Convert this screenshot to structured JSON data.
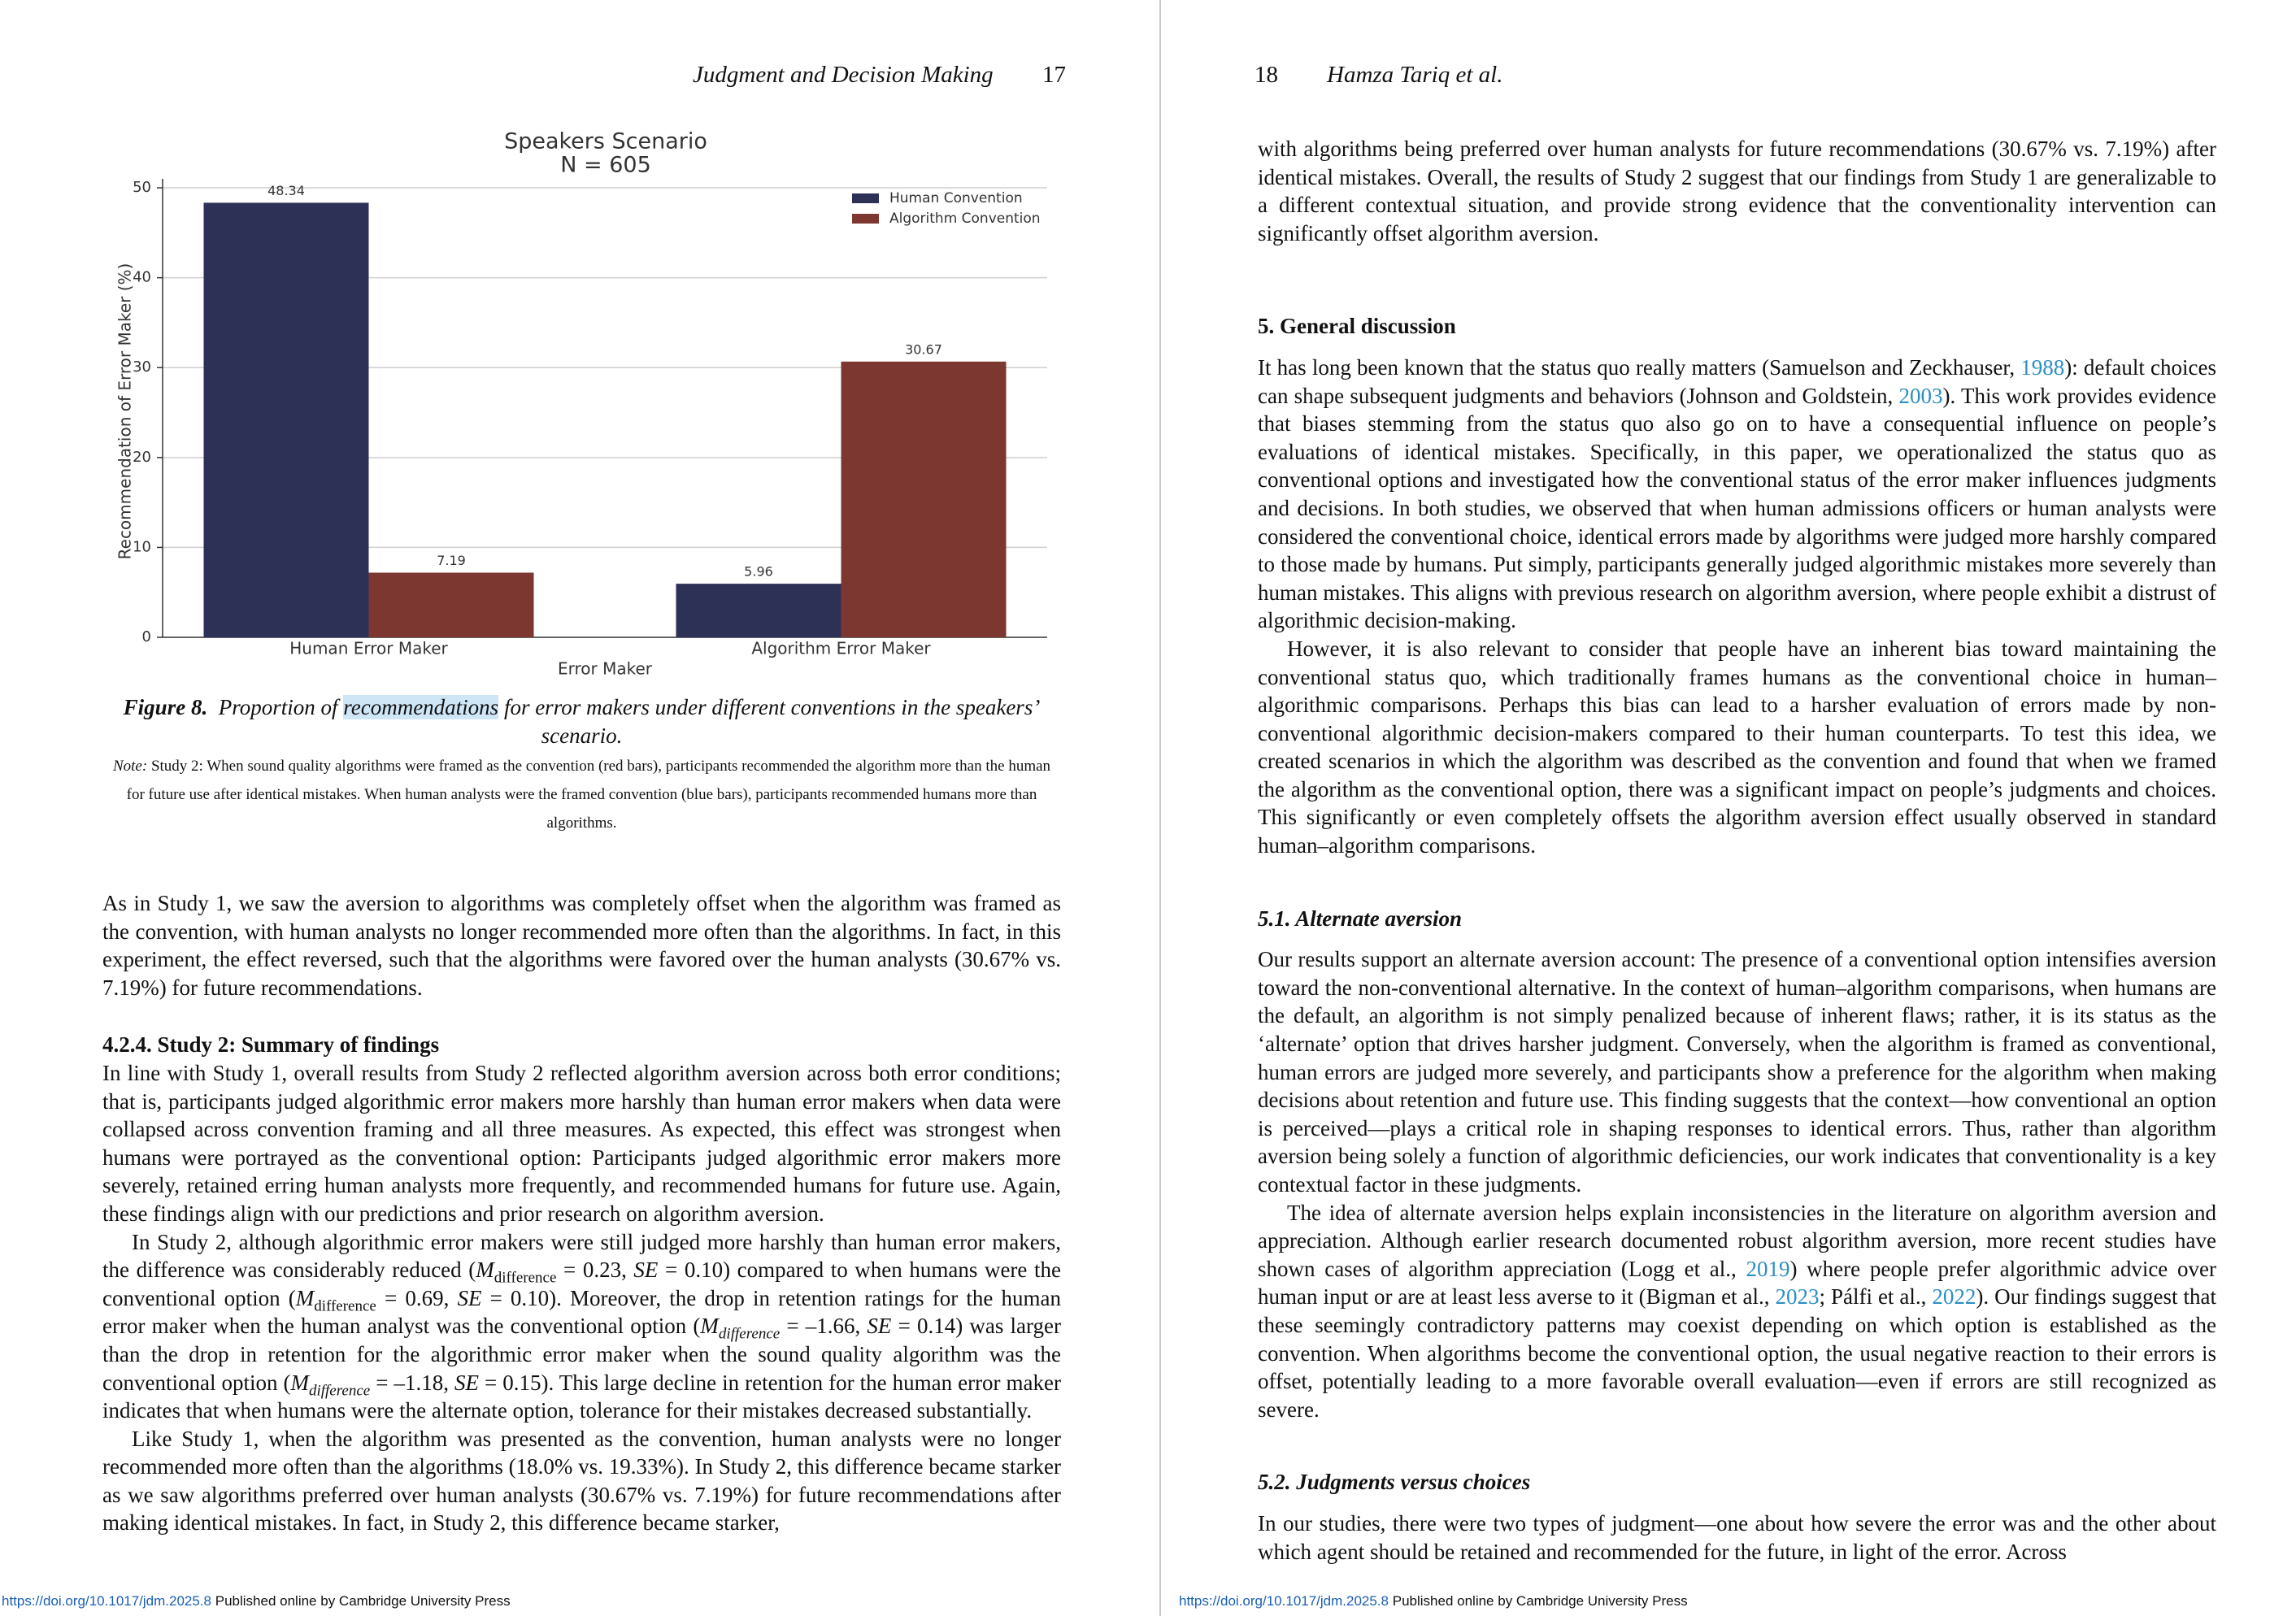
{
  "left_page": {
    "header": {
      "journal": "Judgment and Decision Making",
      "page": "17"
    },
    "figure": {
      "label": "Figure 8.",
      "caption": [
        "Proportion of ",
        "recommendations",
        " for error makers under different conventions in the speakers’ scenario."
      ],
      "note_label": "Note:",
      "note": "Study 2: When sound quality algorithms were framed as the convention (red bars), participants recommended the algorithm more than the human for future use after identical mistakes. When human analysts were the framed convention (blue bars), participants recommended humans more than algorithms."
    },
    "body": {
      "p1": "As in Study 1, we saw the aversion to algorithms was completely offset when the algorithm was framed as the convention, with human analysts no longer recommended more often than the algorithms. In fact, in this experiment, the effect reversed, such that the algorithms were favored over the human analysts (30.67% vs. 7.19%) for future recommendations.",
      "heading": "4.2.4. Study 2: Summary of findings",
      "p2": "In line with Study 1, overall results from Study 2 reflected algorithm aversion across both error conditions; that is, participants judged algorithmic error makers more harshly than human error makers when data were collapsed across convention framing and all three measures. As expected, this effect was strongest when humans were portrayed as the conventional option: Participants judged algorithmic error makers more severely, retained erring human analysts more frequently, and recommended humans for future use. Again, these findings align with our predictions and prior research on algorithm aversion.",
      "p3": [
        "In Study 2, although algorithmic error makers were still judged more harshly than human error makers, the difference was considerably reduced (",
        "M",
        "difference",
        " = 0.23, ",
        "SE",
        " = 0.10) compared to when humans were the conventional option (",
        "M",
        "difference",
        " = 0.69, ",
        "SE",
        " = 0.10). Moreover, the drop in retention ratings for the human error maker when the human analyst was the conventional option (",
        "M",
        "difference",
        " = –1.66, ",
        "SE",
        " = 0.14) was larger than the drop in retention for the algorithmic error maker when the sound quality algorithm was the conventional option (",
        "M",
        "difference",
        " = –1.18, ",
        "SE",
        " = 0.15). This large decline in retention for the human error maker indicates that when humans were the alternate option, tolerance for their mistakes decreased substantially."
      ],
      "p4": "Like Study 1, when the algorithm was presented as the convention, human analysts were no longer recommended more often than the algorithms (18.0% vs. 19.33%). In Study 2, this difference became starker as we saw algorithms preferred over human analysts (30.67% vs. 7.19%) for future recommendations after making identical mistakes. In fact, in Study 2, this difference became starker,"
    },
    "footer": {
      "doi": "https://doi.org/10.1017/jdm.2025.8",
      "publisher": "Published online by Cambridge University Press"
    }
  },
  "right_page": {
    "header": {
      "page": "18",
      "authors": "Hamza Tariq et al."
    },
    "body": {
      "p0": "with algorithms being preferred over human analysts for future recommendations (30.67% vs. 7.19%) after identical mistakes. Overall, the results of Study 2 suggest that our findings from Study 1 are generalizable to a different contextual situation, and provide strong evidence that the conventionality intervention can significantly offset algorithm aversion.",
      "heading1": "5. General discussion",
      "p1": [
        "It has long been known that the status quo really matters (Samuelson and Zeckhauser, ",
        "1988",
        "): default choices can shape subsequent judgments and behaviors (Johnson and Goldstein, ",
        "2003",
        "). This work provides evidence that biases stemming from the status quo also go on to have a consequential influence on people’s evaluations of identical mistakes. Specifically, in this paper, we operationalized the status quo as conventional options and investigated how the conventional status of the error maker influences judgments and decisions. In both studies, we observed that when human admissions officers or human analysts were considered the conventional choice, identical errors made by algorithms were judged more harshly compared to those made by humans. Put simply, participants generally judged algorithmic mistakes more severely than human mistakes. This aligns with previous research on algorithm aversion, where people exhibit a distrust of algorithmic decision-making."
      ],
      "p2": "However, it is also relevant to consider that people have an inherent bias toward maintaining the conventional status quo, which traditionally frames humans as the conventional choice in human–algorithmic comparisons. Perhaps this bias can lead to a harsher evaluation of errors made by non-conventional algorithmic decision-makers compared to their human counterparts. To test this idea, we created scenarios in which the algorithm was described as the convention and found that when we framed the algorithm as the conventional option, there was a significant impact on people’s judgments and choices. This significantly or even completely offsets the algorithm aversion effect usually observed in standard human–algorithm comparisons.",
      "heading2": "5.1. Alternate aversion",
      "p3": "Our results support an alternate aversion account: The presence of a conventional option intensifies aversion toward the non-conventional alternative. In the context of human–algorithm comparisons, when humans are the default, an algorithm is not simply penalized because of inherent flaws; rather, it is its status as the ‘alternate’ option that drives harsher judgment. Conversely, when the algorithm is framed as conventional, human errors are judged more severely, and participants show a preference for the algorithm when making decisions about retention and future use. This finding suggests that the context—how conventional an option is perceived—plays a critical role in shaping responses to identical errors. Thus, rather than algorithm aversion being solely a function of algorithmic deficiencies, our work indicates that conventionality is a key contextual factor in these judgments.",
      "p4": [
        "The idea of alternate aversion helps explain inconsistencies in the literature on algorithm aversion and appreciation. Although earlier research documented robust algorithm aversion, more recent studies have shown cases of algorithm appreciation (Logg et al., ",
        "2019",
        ") where people prefer algorithmic advice over human input or are at least less averse to it (Bigman et al., ",
        "2023",
        "; Pálfi et al., ",
        "2022",
        "). Our findings suggest that these seemingly contradictory patterns may coexist depending on which option is established as the convention. When algorithms become the conventional option, the usual negative reaction to their errors is offset, potentially leading to a more favorable overall evaluation—even if errors are still recognized as severe."
      ],
      "heading3": "5.2. Judgments versus choices",
      "p5": "In our studies, there were two types of judgment—one about how severe the error was and the other about which agent should be retained and recommended for the future, in light of the error. Across"
    },
    "footer": {
      "doi": "https://doi.org/10.1017/jdm.2025.8",
      "publisher": "Published online by Cambridge University Press"
    }
  },
  "chart_data": {
    "type": "bar",
    "title": "Speakers Scenario",
    "subtitle": "N = 605",
    "x_label": "Error Maker",
    "y_label": "Recommendation of Error Maker (%)",
    "categories": [
      "Human Error Maker",
      "Algorithm Error Maker"
    ],
    "series": [
      {
        "name": "Human Convention",
        "color": "#2e3156",
        "values": [
          48.34,
          5.96
        ]
      },
      {
        "name": "Algorithm Convention",
        "color": "#7c3731",
        "values": [
          7.19,
          30.67
        ]
      }
    ],
    "ylim": [
      0,
      51
    ],
    "yticks": [
      0,
      10,
      20,
      30,
      40,
      50
    ],
    "grid": true,
    "legend": "upper right"
  }
}
